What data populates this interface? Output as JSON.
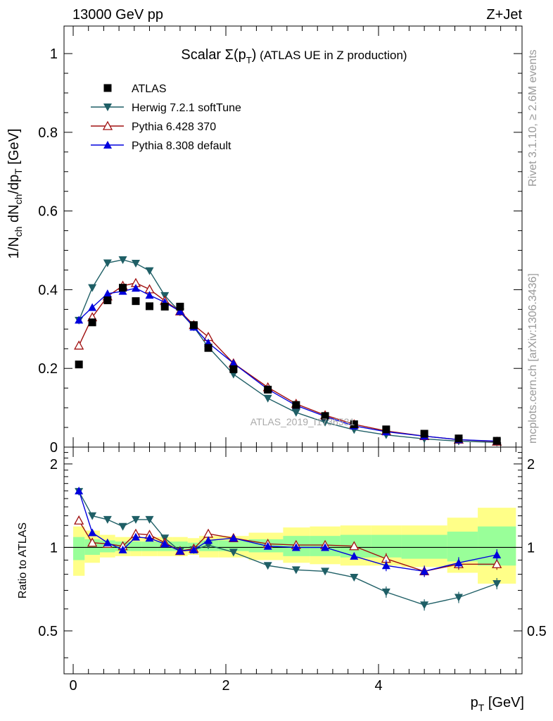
{
  "header": {
    "energy_label": "13000 GeV pp",
    "process_label": "Z+Jet"
  },
  "side_text": {
    "rivet": "Rivet 3.1.10, ≥ 2.6M events",
    "mcplots": "mcplots.cern.ch [arXiv:1306.3436]"
  },
  "plot_title": {
    "main": "Scalar Σ(p",
    "sub": "T",
    "close": ")",
    "suffix": " (ATLAS UE in Z production)"
  },
  "watermark": "ATLAS_2019_I1736531",
  "y_axis_label": {
    "p1": "1/N",
    "s1": "ch",
    "p2": " dN",
    "s2": "ch",
    "p3": "/dp",
    "s3": "T",
    "p4": " [GeV]"
  },
  "x_axis_label": {
    "p": "p",
    "s": "T",
    "u": " [GeV]"
  },
  "ratio_ylabel": "Ratio to ATLAS",
  "chart_data": [
    {
      "type": "line",
      "panel": "main",
      "xlim": [
        -0.12,
        5.88
      ],
      "ylim": [
        0,
        1.07
      ],
      "x_ticks": [
        0,
        2,
        4
      ],
      "y_ticks": [
        {
          "v": 0,
          "label": "0"
        },
        {
          "v": 0.2,
          "label": "0.2"
        },
        {
          "v": 0.4,
          "label": "0.4"
        },
        {
          "v": 0.6,
          "label": "0.6"
        },
        {
          "v": 0.8,
          "label": "0.8"
        },
        {
          "v": 1,
          "label": "1"
        }
      ],
      "legend_position": "top-left",
      "x": [
        0.075,
        0.25,
        0.45,
        0.65,
        0.82,
        1.0,
        1.2,
        1.4,
        1.58,
        1.77,
        2.1,
        2.55,
        2.92,
        3.3,
        3.68,
        4.1,
        4.6,
        5.05,
        5.55
      ],
      "series": [
        {
          "name": "ATLAS",
          "color": "#000000",
          "marker": "square",
          "values": [
            0.21,
            0.317,
            0.373,
            0.405,
            0.371,
            0.358,
            0.357,
            0.357,
            0.31,
            0.252,
            0.198,
            0.146,
            0.107,
            0.079,
            0.058,
            0.045,
            0.034,
            0.022,
            0.016
          ]
        },
        {
          "name": "Herwig 7.2.1 softTune",
          "color": "#1f5f66",
          "marker": "triangle-down",
          "values": [
            0.322,
            0.405,
            0.468,
            0.476,
            0.467,
            0.448,
            0.385,
            0.343,
            0.305,
            0.254,
            0.185,
            0.124,
            0.088,
            0.063,
            0.044,
            0.031,
            0.021,
            0.015,
            0.012
          ]
        },
        {
          "name": "Pythia 6.428 370",
          "color": "#a01010",
          "marker": "triangle-up-open",
          "values": [
            0.258,
            0.33,
            0.383,
            0.41,
            0.417,
            0.401,
            0.372,
            0.345,
            0.31,
            0.28,
            0.213,
            0.152,
            0.11,
            0.081,
            0.058,
            0.041,
            0.028,
            0.019,
            0.014
          ]
        },
        {
          "name": "Pythia 8.308 default",
          "color": "#0000dd",
          "marker": "triangle-up",
          "values": [
            0.323,
            0.355,
            0.39,
            0.396,
            0.404,
            0.386,
            0.368,
            0.345,
            0.305,
            0.265,
            0.213,
            0.147,
            0.106,
            0.078,
            0.054,
            0.039,
            0.028,
            0.019,
            0.015
          ]
        }
      ]
    },
    {
      "type": "line",
      "panel": "ratio",
      "xlim": [
        -0.12,
        5.88
      ],
      "ylim": [
        0.35,
        2.3
      ],
      "y_scale": "log",
      "x_ticks": [
        {
          "v": 0,
          "label": "0"
        },
        {
          "v": 2,
          "label": "2"
        },
        {
          "v": 4,
          "label": "4"
        }
      ],
      "y_ticks": [
        {
          "v": 0.5,
          "label": "0.5"
        },
        {
          "v": 1,
          "label": "1"
        },
        {
          "v": 2,
          "label": "2"
        }
      ],
      "reference_line": 1,
      "x": [
        0.075,
        0.25,
        0.45,
        0.65,
        0.82,
        1.0,
        1.2,
        1.4,
        1.58,
        1.77,
        2.1,
        2.55,
        2.92,
        3.3,
        3.68,
        4.1,
        4.6,
        5.05,
        5.55
      ],
      "bands": {
        "edges": [
          0.0,
          0.15,
          0.35,
          0.55,
          0.75,
          0.9,
          1.1,
          1.3,
          1.5,
          1.65,
          1.9,
          2.3,
          2.75,
          3.1,
          3.5,
          3.9,
          4.3,
          4.9,
          5.3,
          5.8
        ],
        "yellow_color": "#ffff88",
        "green_color": "#99ff99",
        "yellow_low": [
          0.79,
          0.88,
          0.92,
          0.93,
          0.93,
          0.93,
          0.93,
          0.93,
          0.94,
          0.92,
          0.92,
          0.9,
          0.88,
          0.87,
          0.86,
          0.86,
          0.85,
          0.81,
          0.74
        ],
        "yellow_high": [
          1.19,
          1.15,
          1.11,
          1.09,
          1.09,
          1.09,
          1.09,
          1.09,
          1.08,
          1.1,
          1.1,
          1.13,
          1.18,
          1.19,
          1.2,
          1.2,
          1.2,
          1.28,
          1.39
        ],
        "green_low": [
          0.9,
          0.94,
          0.96,
          0.97,
          0.97,
          0.97,
          0.97,
          0.97,
          0.98,
          0.97,
          0.97,
          0.96,
          0.93,
          0.93,
          0.92,
          0.92,
          0.91,
          0.89,
          0.86
        ],
        "green_high": [
          1.09,
          1.07,
          1.06,
          1.05,
          1.05,
          1.05,
          1.05,
          1.05,
          1.04,
          1.06,
          1.06,
          1.07,
          1.1,
          1.1,
          1.11,
          1.11,
          1.11,
          1.14,
          1.19
        ]
      },
      "series": [
        {
          "name": "Herwig 7.2.1 softTune",
          "color": "#1f5f66",
          "marker": "triangle-down",
          "values": [
            1.59,
            1.3,
            1.26,
            1.19,
            1.26,
            1.26,
            1.08,
            0.97,
            0.98,
            1.02,
            0.96,
            0.86,
            0.83,
            0.82,
            0.78,
            0.69,
            0.62,
            0.66,
            0.74
          ]
        },
        {
          "name": "Pythia 6.428 370",
          "color": "#a01010",
          "marker": "triangle-up-open",
          "values": [
            1.25,
            1.04,
            1.03,
            1.01,
            1.12,
            1.11,
            1.04,
            0.97,
            0.99,
            1.12,
            1.08,
            1.03,
            1.02,
            1.02,
            1.01,
            0.91,
            0.82,
            0.87,
            0.87
          ]
        },
        {
          "name": "Pythia 8.308 default",
          "color": "#0000dd",
          "marker": "triangle-up",
          "values": [
            1.6,
            1.13,
            1.04,
            0.98,
            1.09,
            1.08,
            1.03,
            0.97,
            0.98,
            1.06,
            1.08,
            1.01,
            1.0,
            1.0,
            0.93,
            0.86,
            0.82,
            0.88,
            0.94
          ]
        }
      ]
    }
  ]
}
